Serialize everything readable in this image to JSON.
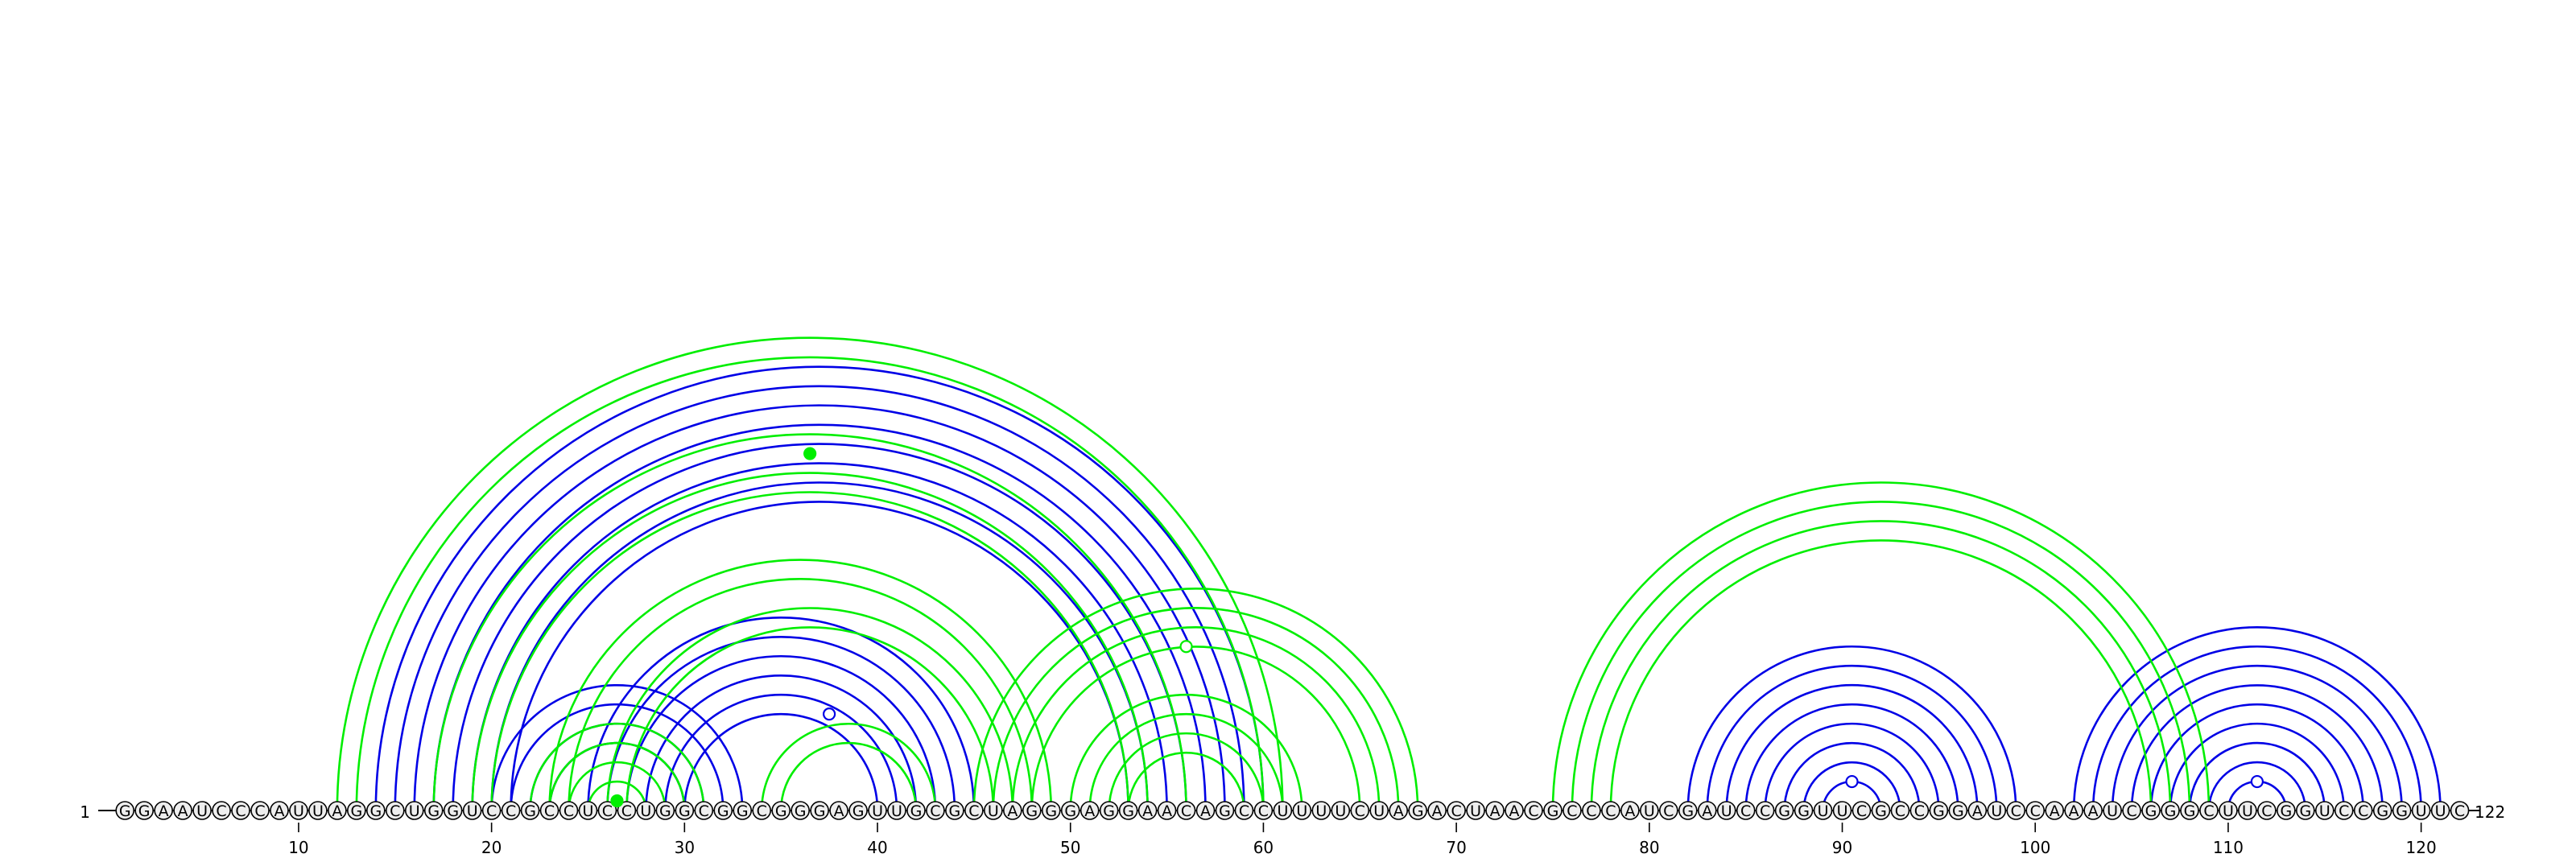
{
  "sequence": "GGAAUCCCAUUAGGCUGGUCCGCCUCCUGGCGGCGGGAGUUGCGCUAGGGAGGAACAGCCUUUUCUAGACUAACGCCCAUCGAUCCGGUUCGCCGGAUCCAAAUCGGGCUUCGGUCCGGUUC",
  "start_label": "1",
  "end_label": "122",
  "ticks": [
    {
      "pos": 10,
      "label": "10"
    },
    {
      "pos": 20,
      "label": "20"
    },
    {
      "pos": 30,
      "label": "30"
    },
    {
      "pos": 40,
      "label": "40"
    },
    {
      "pos": 50,
      "label": "50"
    },
    {
      "pos": 60,
      "label": "60"
    },
    {
      "pos": 70,
      "label": "70"
    },
    {
      "pos": 80,
      "label": "80"
    },
    {
      "pos": 90,
      "label": "90"
    },
    {
      "pos": 100,
      "label": "100"
    },
    {
      "pos": 110,
      "label": "110"
    },
    {
      "pos": 120,
      "label": "120"
    }
  ],
  "colors": {
    "blue_arcs": "#0000e6",
    "green_arcs": "#00ee00",
    "nucleotide_fill": "#eeeeee",
    "nucleotide_stroke": "#000000"
  },
  "arc_sets": [
    {
      "color": "#0000e6",
      "pairs": [
        [
          14,
          60
        ],
        [
          15,
          59
        ],
        [
          16,
          58
        ],
        [
          17,
          57
        ],
        [
          18,
          56
        ],
        [
          19,
          55
        ],
        [
          20,
          54
        ],
        [
          21,
          53
        ]
      ]
    },
    {
      "color": "#0000e6",
      "pairs": [
        [
          25,
          45
        ],
        [
          26,
          44
        ],
        [
          27,
          43
        ],
        [
          28,
          42
        ],
        [
          29,
          41
        ],
        [
          30,
          40
        ]
      ]
    },
    {
      "color": "#0000e6",
      "pairs": [
        [
          20,
          33
        ],
        [
          21,
          32
        ],
        [
          22,
          31
        ],
        [
          23,
          30
        ]
      ]
    },
    {
      "color": "#0000e6",
      "pairs": [
        [
          82,
          99
        ],
        [
          83,
          98
        ],
        [
          84,
          97
        ],
        [
          85,
          96
        ],
        [
          86,
          95
        ],
        [
          87,
          94
        ],
        [
          88,
          93
        ],
        [
          89,
          92
        ]
      ]
    },
    {
      "color": "#0000e6",
      "pairs": [
        [
          102,
          121
        ],
        [
          103,
          120
        ],
        [
          104,
          119
        ],
        [
          105,
          118
        ],
        [
          106,
          117
        ],
        [
          107,
          116
        ],
        [
          108,
          115
        ],
        [
          109,
          114
        ],
        [
          110,
          113
        ]
      ]
    },
    {
      "color": "#00ee00",
      "pairs": [
        [
          12,
          61
        ],
        [
          13,
          60
        ],
        [
          17,
          56
        ],
        [
          19,
          54
        ],
        [
          20,
          53
        ]
      ]
    },
    {
      "color": "#00ee00",
      "pairs": [
        [
          23,
          49
        ],
        [
          24,
          48
        ],
        [
          26,
          47
        ],
        [
          27,
          46
        ]
      ]
    },
    {
      "color": "#00ee00",
      "pairs": [
        [
          22,
          31
        ],
        [
          23,
          30
        ],
        [
          24,
          29
        ],
        [
          25,
          28
        ],
        [
          26,
          27
        ]
      ]
    },
    {
      "color": "#00ee00",
      "pairs": [
        [
          34,
          43
        ],
        [
          35,
          42
        ]
      ]
    },
    {
      "color": "#00ee00",
      "pairs": [
        [
          45,
          68
        ],
        [
          46,
          67
        ],
        [
          47,
          66
        ],
        [
          48,
          65
        ]
      ]
    },
    {
      "color": "#00ee00",
      "pairs": [
        [
          50,
          62
        ],
        [
          51,
          61
        ],
        [
          52,
          60
        ],
        [
          53,
          59
        ]
      ]
    },
    {
      "color": "#00ee00",
      "pairs": [
        [
          75,
          109
        ],
        [
          76,
          108
        ],
        [
          77,
          107
        ],
        [
          78,
          106
        ]
      ]
    }
  ],
  "loop_markers": [
    {
      "pos": 36.5,
      "color": "#00ee00",
      "filled": true,
      "set": 5
    },
    {
      "pos": 37.5,
      "color": "#0000e6",
      "filled": false,
      "set": 1
    },
    {
      "pos": 26.5,
      "color": "#00ee00",
      "filled": true,
      "set": 7
    },
    {
      "pos": 56,
      "color": "#00ee00",
      "filled": false,
      "set": 9
    },
    {
      "pos": 90.5,
      "color": "#0000e6",
      "filled": false,
      "set": 3
    },
    {
      "pos": 111.5,
      "color": "#0000e6",
      "filled": false,
      "set": 4
    }
  ]
}
